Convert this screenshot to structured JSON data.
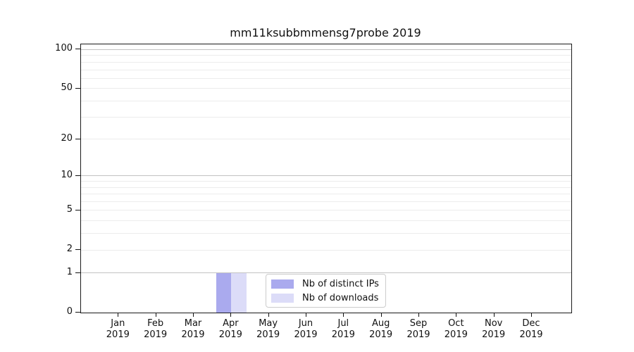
{
  "chart_data": {
    "type": "bar",
    "title": "mm11ksubbmmensg7probe 2019",
    "categories": [
      "Jan",
      "Feb",
      "Mar",
      "Apr",
      "May",
      "Jun",
      "Jul",
      "Aug",
      "Sep",
      "Oct",
      "Nov",
      "Dec"
    ],
    "category_year": "2019",
    "series": [
      {
        "name": "Nb of distinct IPs",
        "color": "#aaaaee",
        "values": [
          0,
          0,
          0,
          1,
          0,
          0,
          0,
          0,
          0,
          0,
          0,
          0
        ]
      },
      {
        "name": "Nb of downloads",
        "color": "#dcdcf8",
        "values": [
          0,
          0,
          0,
          1,
          0,
          0,
          0,
          0,
          0,
          0,
          0,
          0
        ]
      }
    ],
    "y_axis": {
      "scale": "log10(1+y)",
      "ticks": [
        0,
        1,
        2,
        5,
        10,
        20,
        50,
        100
      ],
      "ylim": [
        0,
        110
      ],
      "grid_major": [
        1,
        10,
        100
      ],
      "grid_minor": [
        2,
        3,
        4,
        5,
        6,
        7,
        8,
        9,
        20,
        30,
        40,
        50,
        60,
        70,
        80,
        90
      ]
    },
    "legend": {
      "position": "inside-bottom-center",
      "items": [
        "Nb of distinct IPs",
        "Nb of downloads"
      ]
    },
    "colors": {
      "background": "#ffffff",
      "axis": "#1a1a1a",
      "text": "#111111",
      "grid_major": "#c2c2c2",
      "grid_minor": "#ececec"
    }
  }
}
